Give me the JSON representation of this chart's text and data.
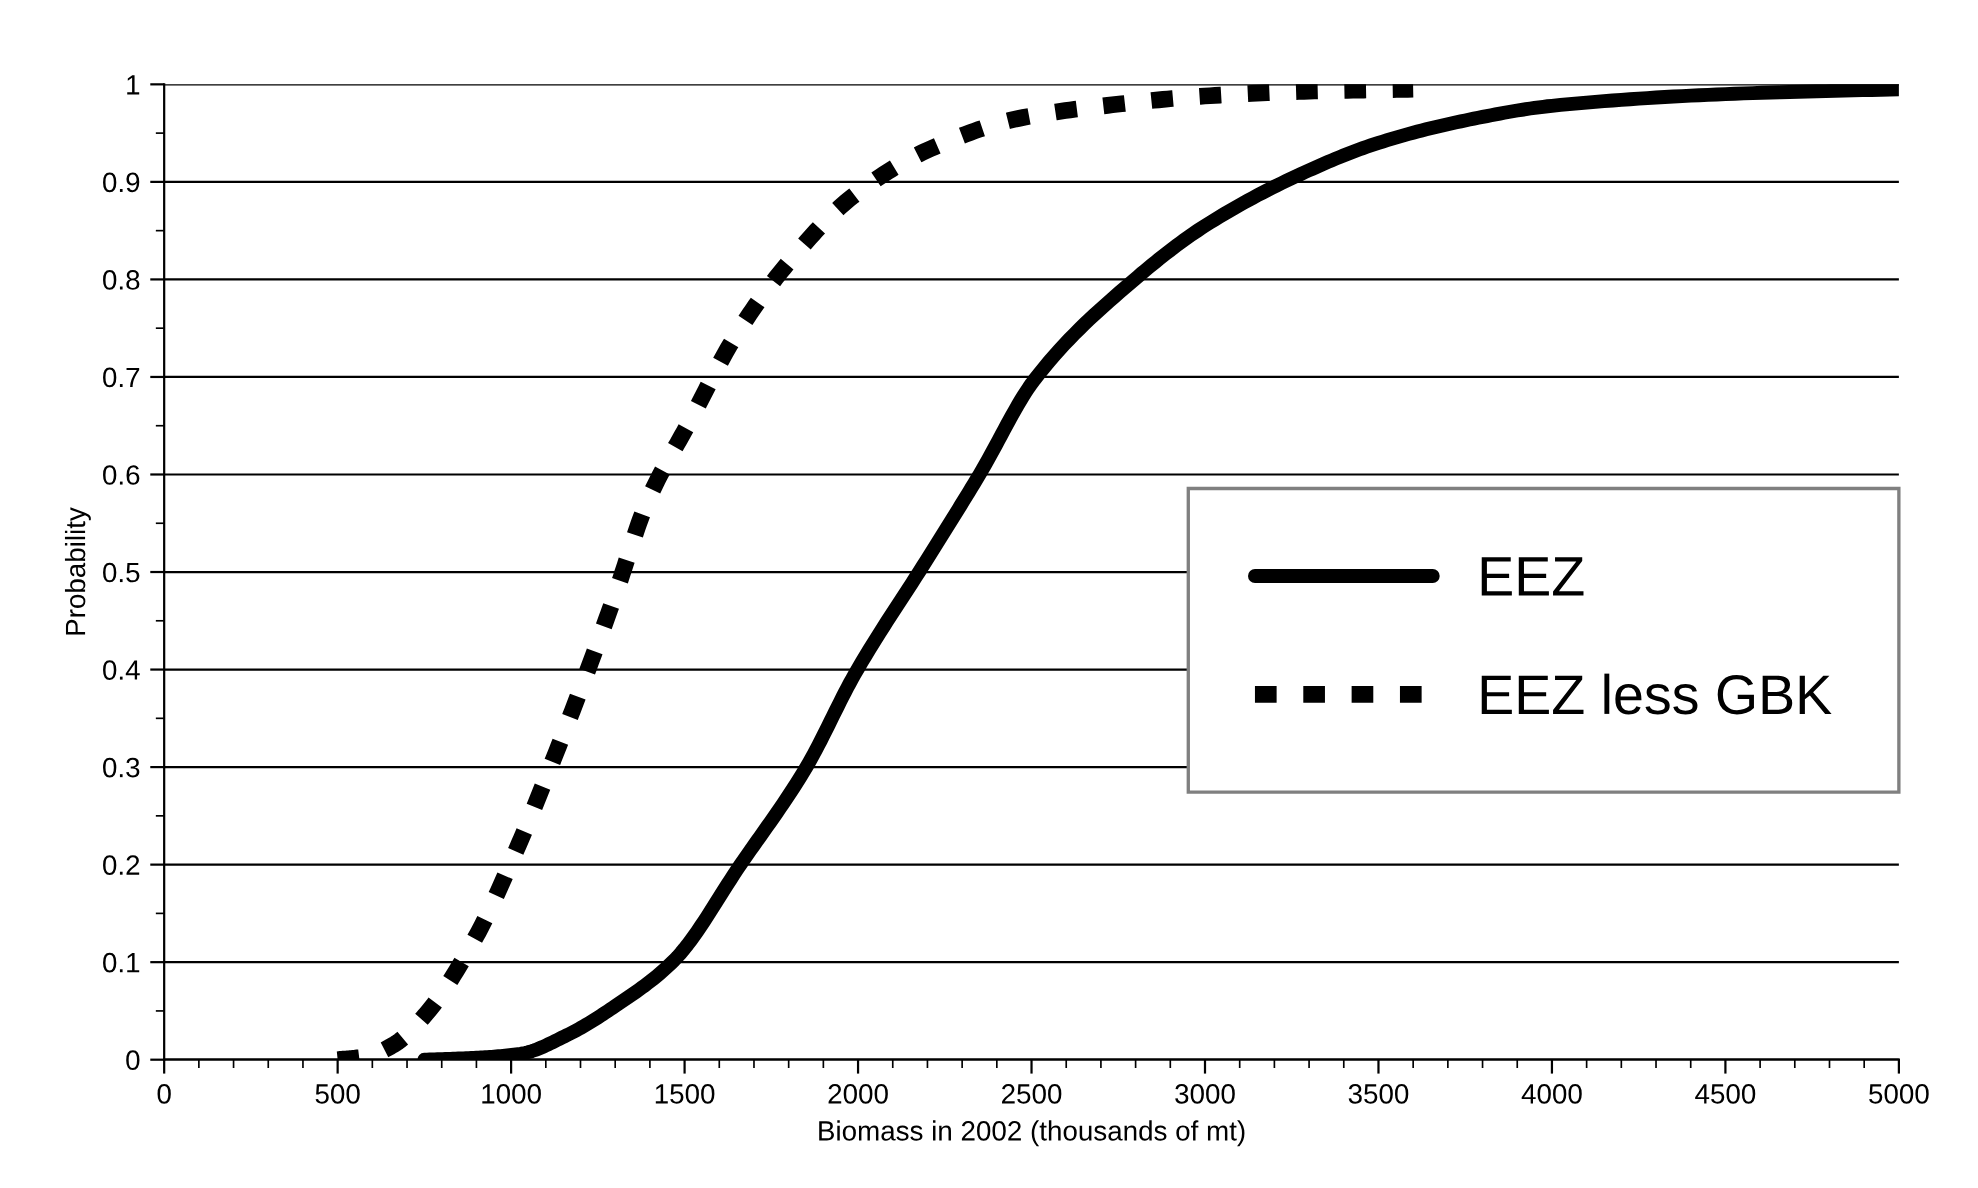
{
  "chart_data": {
    "type": "line",
    "xlabel": "Biomass in 2002 (thousands of mt)",
    "ylabel": "Probability",
    "xlim": [
      0,
      5000
    ],
    "xticks": [
      0,
      500,
      1000,
      1500,
      2000,
      2500,
      3000,
      3500,
      4000,
      4500,
      5000
    ],
    "ylim": [
      0,
      1
    ],
    "yticks": [
      0,
      0.1,
      0.2,
      0.3,
      0.4,
      0.5,
      0.6,
      0.7,
      0.8,
      0.9,
      1
    ],
    "grid": "y",
    "legend": "right",
    "marker": "none",
    "series": [
      {
        "name": "EEZ",
        "color": "#000000",
        "line_style": "solid",
        "x": [
          750,
          900,
          1027,
          1160,
          1300,
          1470,
          1661,
          1851,
          1990,
          2197,
          2350,
          2508,
          2797,
          3000,
          3276,
          3500,
          3750,
          4000,
          4500,
          5000
        ],
        "values": [
          0,
          0.002,
          0.006,
          0.025,
          0.055,
          0.102,
          0.2,
          0.3,
          0.395,
          0.512,
          0.6,
          0.697,
          0.8,
          0.855,
          0.908,
          0.94,
          0.963,
          0.978,
          0.99,
          0.995
        ]
      },
      {
        "name": "EEZ less GBK",
        "color": "#000000",
        "line_style": "dashed",
        "x": [
          500,
          580,
          660,
          755,
          900,
          1015,
          1113,
          1211,
          1303,
          1390,
          1517,
          1643,
          1794,
          1984,
          2209,
          2462,
          2733,
          2999,
          3300,
          3600
        ],
        "values": [
          0,
          0.003,
          0.015,
          0.047,
          0.127,
          0.215,
          0.3,
          0.39,
          0.48,
          0.57,
          0.656,
          0.74,
          0.815,
          0.885,
          0.934,
          0.965,
          0.979,
          0.988,
          0.993,
          0.995
        ]
      }
    ]
  }
}
